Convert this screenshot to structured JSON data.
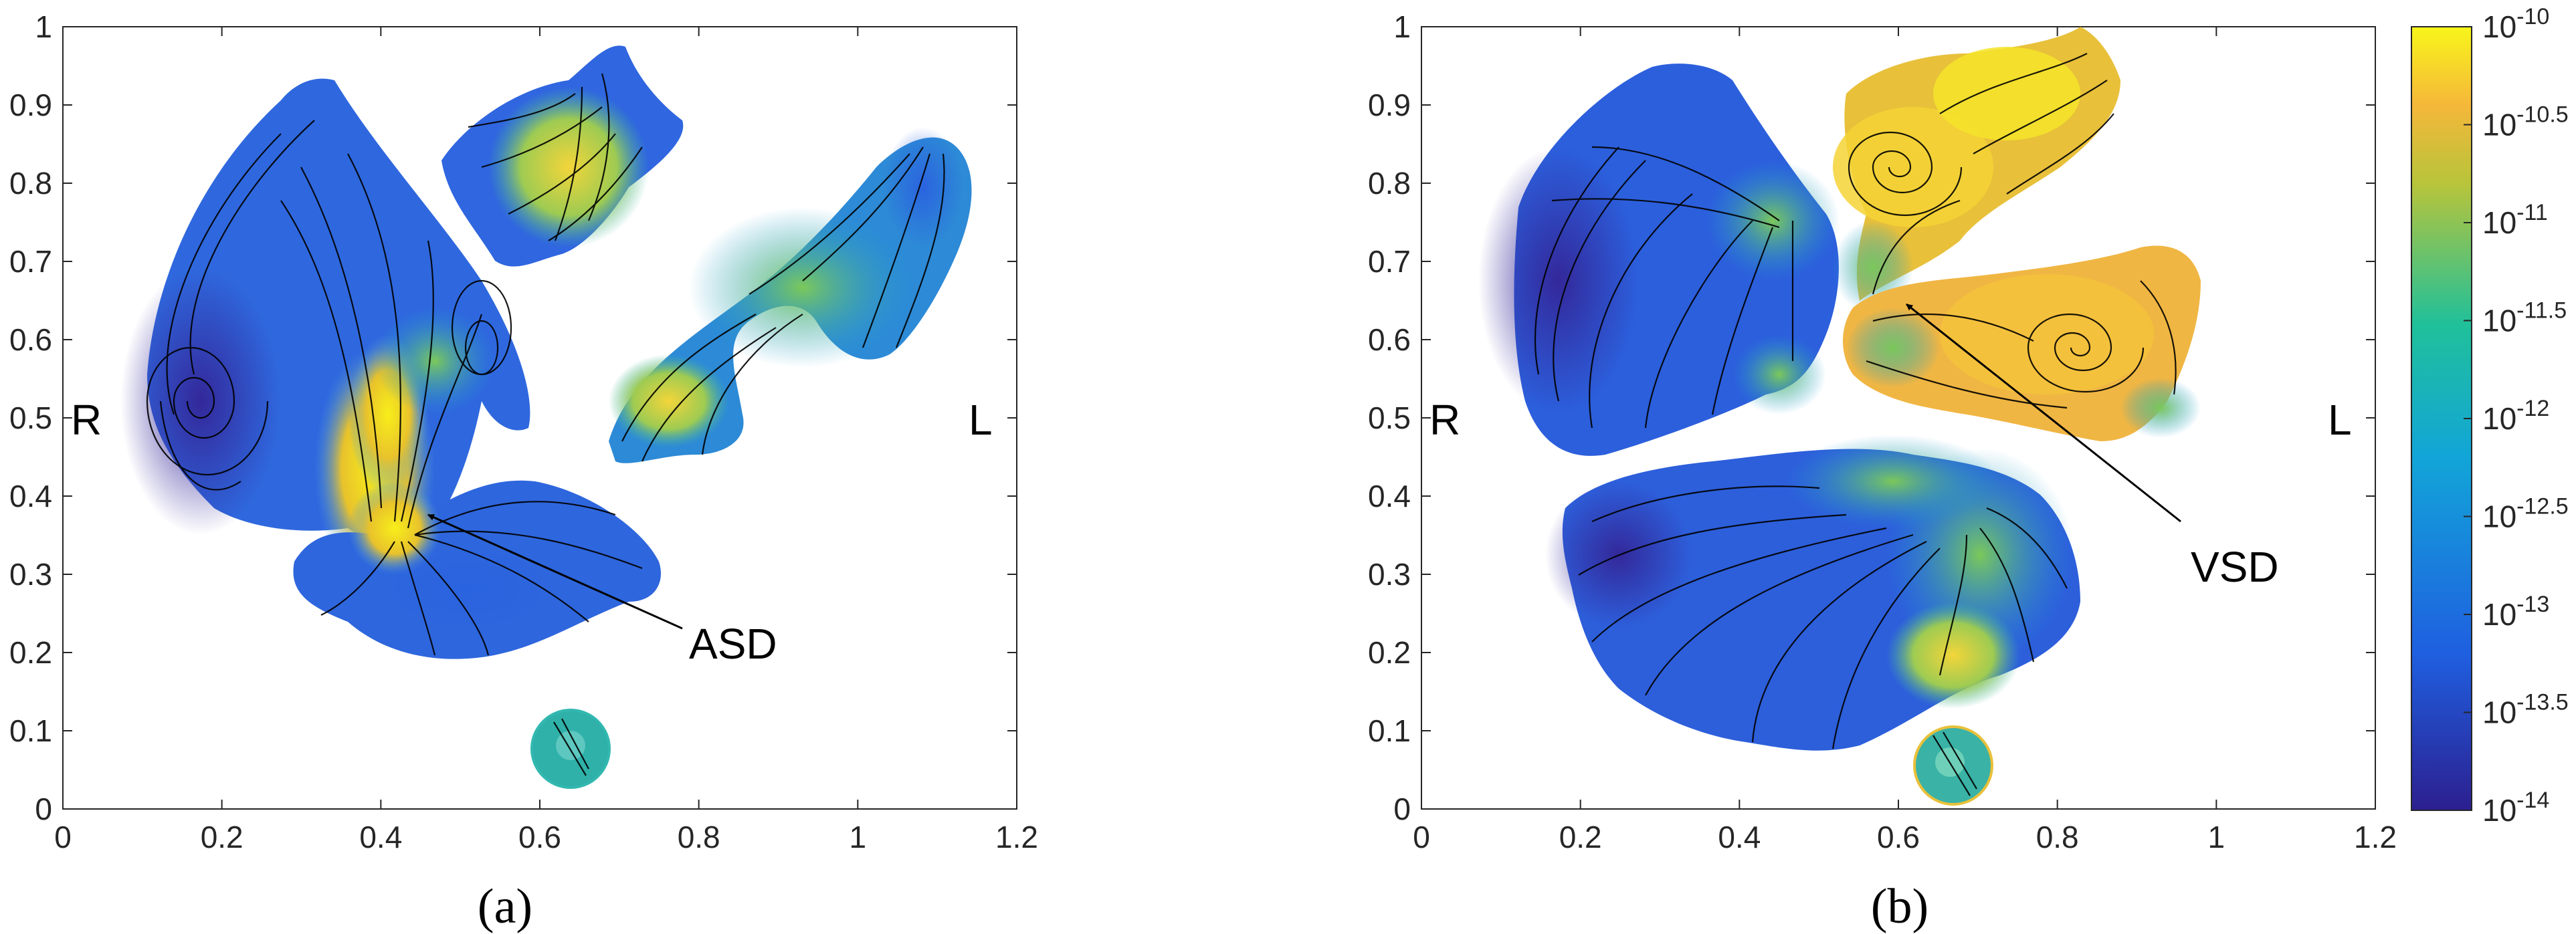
{
  "figure": {
    "panel_labels": [
      "(a)",
      "(b)"
    ]
  },
  "chart_data": [
    {
      "type": "heatmap",
      "panel": "(a)",
      "xlim": [
        0,
        1.2
      ],
      "ylim": [
        0,
        1
      ],
      "xticks": [
        "0",
        "0.2",
        "0.4",
        "0.6",
        "0.8",
        "1",
        "1.2"
      ],
      "yticks": [
        "0",
        "0.1",
        "0.2",
        "0.3",
        "0.4",
        "0.5",
        "0.6",
        "0.7",
        "0.8",
        "0.9",
        "1"
      ],
      "side_labels": {
        "left": "R",
        "right": "L"
      },
      "annotation": {
        "text": "ASD",
        "tip": [
          0.46,
          0.375
        ]
      },
      "colormap": "parula",
      "grid": false
    },
    {
      "type": "heatmap",
      "panel": "(b)",
      "xlim": [
        0,
        1.2
      ],
      "ylim": [
        0,
        1
      ],
      "xticks": [
        "0",
        "0.2",
        "0.4",
        "0.6",
        "0.8",
        "1",
        "1.2"
      ],
      "yticks": [
        "0",
        "0.1",
        "0.2",
        "0.3",
        "0.4",
        "0.5",
        "0.6",
        "0.7",
        "0.8",
        "0.9",
        "1"
      ],
      "side_labels": {
        "left": "R",
        "right": "L"
      },
      "annotation": {
        "text": "VSD",
        "tip": [
          0.62,
          0.635
        ]
      },
      "colormap": "parula",
      "grid": false,
      "colorbar": {
        "scale": "log",
        "range": [
          1e-14,
          1e-10
        ],
        "tick_exponents": [
          "-10",
          "-10.5",
          "-11",
          "-11.5",
          "-12",
          "-12.5",
          "-13",
          "-13.5",
          "-14"
        ],
        "tick_base": "10"
      }
    }
  ],
  "colors": {
    "deep": "#3a2d9e",
    "blue": "#1f6fe0",
    "cyan": "#1eb0c8",
    "green": "#58c66c",
    "yellow": "#f4e51e",
    "streamline": "#000000"
  }
}
